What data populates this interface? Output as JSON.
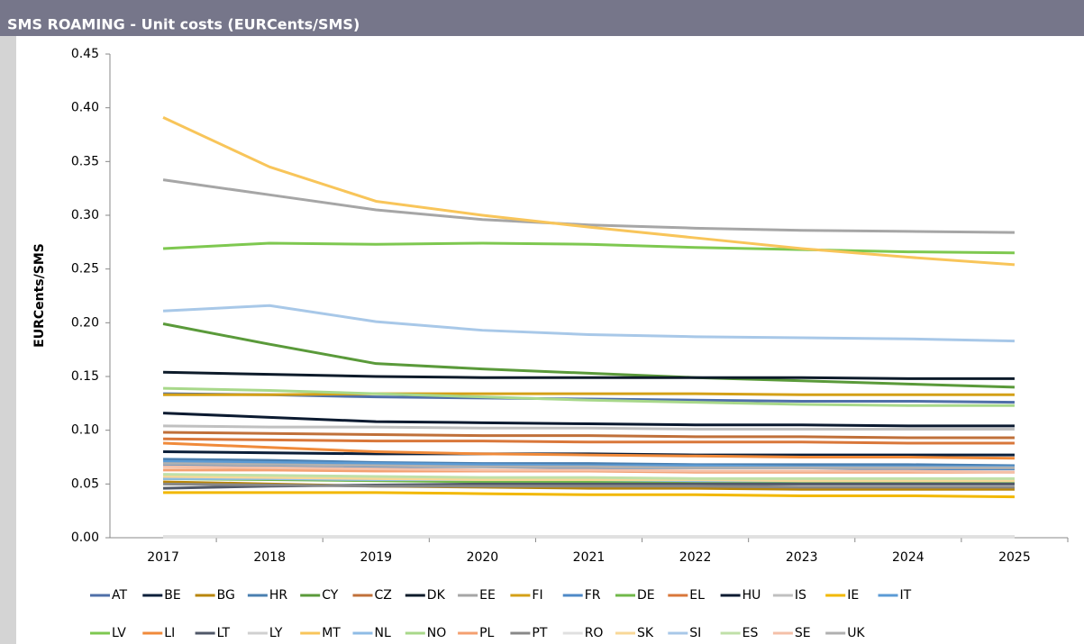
{
  "chart_data": {
    "type": "line",
    "title": "SMS ROAMING - Unit costs (EURCents/SMS)",
    "y_label": "EURCents/SMS",
    "categories": [
      "2017",
      "2018",
      "2019",
      "2020",
      "2021",
      "2022",
      "2023",
      "2024",
      "2025"
    ],
    "ylim": [
      0,
      0.45
    ],
    "yticks": [
      {
        "value": 0,
        "label": "0.00"
      },
      0.05,
      {
        "value": 0.1,
        "label": "0.10"
      },
      0.15,
      {
        "value": 0.2,
        "label": "0.20"
      },
      0.25,
      {
        "value": 0.3,
        "label": "0.30"
      },
      0.35,
      {
        "value": 0.4,
        "label": "0.40"
      },
      0.45
    ],
    "legend": "bottom",
    "series": [
      {
        "name": "AT",
        "color": "#4f6fa8",
        "values": [
          0.134,
          0.133,
          0.131,
          0.13,
          0.129,
          0.128,
          0.127,
          0.127,
          0.126
        ]
      },
      {
        "name": "BE",
        "color": "#0b1f3a",
        "values": [
          0.08,
          0.079,
          0.078,
          0.078,
          0.078,
          0.077,
          0.077,
          0.077,
          0.077
        ]
      },
      {
        "name": "BG",
        "color": "#b8860b",
        "values": [
          0.052,
          0.05,
          0.048,
          0.047,
          0.046,
          0.046,
          0.045,
          0.045,
          0.045
        ]
      },
      {
        "name": "HR",
        "color": "#4a7fb0",
        "values": [
          0.073,
          0.072,
          0.07,
          0.069,
          0.069,
          0.068,
          0.068,
          0.068,
          0.067
        ]
      },
      {
        "name": "CY",
        "color": "#5a9a3a",
        "values": [
          0.199,
          0.18,
          0.162,
          0.157,
          0.153,
          0.149,
          0.146,
          0.143,
          0.14
        ]
      },
      {
        "name": "CZ",
        "color": "#c0703a",
        "values": [
          0.098,
          0.097,
          0.096,
          0.095,
          0.095,
          0.094,
          0.094,
          0.093,
          0.093
        ]
      },
      {
        "name": "DK",
        "color": "#0d1b2a",
        "values": [
          0.154,
          0.152,
          0.15,
          0.149,
          0.149,
          0.149,
          0.149,
          0.148,
          0.148
        ]
      },
      {
        "name": "EE",
        "color": "#a6a6a6",
        "values": [
          0.333,
          0.319,
          0.305,
          0.296,
          0.291,
          0.288,
          0.286,
          0.285,
          0.284
        ]
      },
      {
        "name": "FI",
        "color": "#d4a017",
        "values": [
          0.133,
          0.133,
          0.134,
          0.134,
          0.134,
          0.134,
          0.133,
          0.133,
          0.133
        ]
      },
      {
        "name": "FR",
        "color": "#4e8ac7",
        "values": [
          0.068,
          0.067,
          0.066,
          0.066,
          0.065,
          0.065,
          0.065,
          0.064,
          0.064
        ]
      },
      {
        "name": "DE",
        "color": "#70b84a",
        "values": [
          0.055,
          0.054,
          0.053,
          0.052,
          0.052,
          0.051,
          0.051,
          0.051,
          0.051
        ]
      },
      {
        "name": "EL",
        "color": "#d9773a",
        "values": [
          0.092,
          0.091,
          0.09,
          0.09,
          0.089,
          0.089,
          0.089,
          0.088,
          0.088
        ]
      },
      {
        "name": "HU",
        "color": "#0b1a30",
        "values": [
          0.116,
          0.112,
          0.108,
          0.107,
          0.106,
          0.105,
          0.105,
          0.104,
          0.104
        ]
      },
      {
        "name": "IS",
        "color": "#c0c0c0",
        "values": [
          0.104,
          0.103,
          0.103,
          0.102,
          0.102,
          0.101,
          0.101,
          0.101,
          0.101
        ]
      },
      {
        "name": "IE",
        "color": "#f2b800",
        "values": [
          0.042,
          0.042,
          0.042,
          0.041,
          0.04,
          0.04,
          0.039,
          0.039,
          0.038
        ]
      },
      {
        "name": "IT",
        "color": "#5b9bd5",
        "values": [
          0.071,
          0.07,
          0.069,
          0.068,
          0.067,
          0.067,
          0.066,
          0.066,
          0.066
        ]
      },
      {
        "name": "LV",
        "color": "#7ec850",
        "values": [
          0.269,
          0.274,
          0.273,
          0.274,
          0.273,
          0.27,
          0.268,
          0.266,
          0.265
        ]
      },
      {
        "name": "LI",
        "color": "#f08a3a",
        "values": [
          0.088,
          0.084,
          0.08,
          0.078,
          0.077,
          0.076,
          0.075,
          0.075,
          0.074
        ]
      },
      {
        "name": "LT",
        "color": "#505868",
        "values": [
          0.046,
          0.048,
          0.049,
          0.05,
          0.05,
          0.05,
          0.05,
          0.05,
          0.05
        ]
      },
      {
        "name": "LY",
        "color": "#d0d0d0",
        "values": [
          0.001,
          0.001,
          0.001,
          0.001,
          0.001,
          0.001,
          0.001,
          0.001,
          0.001
        ]
      },
      {
        "name": "MT",
        "color": "#f8c55a",
        "values": [
          0.391,
          0.345,
          0.313,
          0.3,
          0.289,
          0.279,
          0.269,
          0.261,
          0.254
        ]
      },
      {
        "name": "NL",
        "color": "#8fbce6",
        "values": [
          0.055,
          0.055,
          0.054,
          0.054,
          0.054,
          0.053,
          0.053,
          0.053,
          0.053
        ]
      },
      {
        "name": "NO",
        "color": "#a8d88a",
        "values": [
          0.139,
          0.137,
          0.134,
          0.131,
          0.128,
          0.126,
          0.124,
          0.123,
          0.123
        ]
      },
      {
        "name": "PL",
        "color": "#f4a070",
        "values": [
          0.063,
          0.063,
          0.062,
          0.062,
          0.062,
          0.061,
          0.061,
          0.061,
          0.061
        ]
      },
      {
        "name": "PT",
        "color": "#888888",
        "values": [
          0.05,
          0.049,
          0.048,
          0.048,
          0.048,
          0.048,
          0.047,
          0.047,
          0.047
        ]
      },
      {
        "name": "RO",
        "color": "#e0e0e0",
        "values": [
          0.001,
          0.001,
          0.001,
          0.001,
          0.001,
          0.001,
          0.001,
          0.001,
          0.001
        ]
      },
      {
        "name": "SK",
        "color": "#f8d898",
        "values": [
          0.057,
          0.056,
          0.055,
          0.054,
          0.054,
          0.054,
          0.053,
          0.053,
          0.053
        ]
      },
      {
        "name": "SI",
        "color": "#a8c8e8",
        "values": [
          0.211,
          0.216,
          0.201,
          0.193,
          0.189,
          0.187,
          0.186,
          0.185,
          0.183
        ]
      },
      {
        "name": "ES",
        "color": "#c0e0a8",
        "values": [
          0.059,
          0.058,
          0.057,
          0.056,
          0.056,
          0.055,
          0.055,
          0.055,
          0.055
        ]
      },
      {
        "name": "SE",
        "color": "#f4c0a8",
        "values": [
          0.066,
          0.065,
          0.064,
          0.063,
          0.063,
          0.062,
          0.062,
          0.062,
          0.061
        ]
      },
      {
        "name": "UK",
        "color": "#b0b0b0",
        "values": [
          0.069,
          0.068,
          0.067,
          0.066,
          0.066,
          0.065,
          0.065,
          0.065,
          0.065
        ]
      }
    ]
  }
}
